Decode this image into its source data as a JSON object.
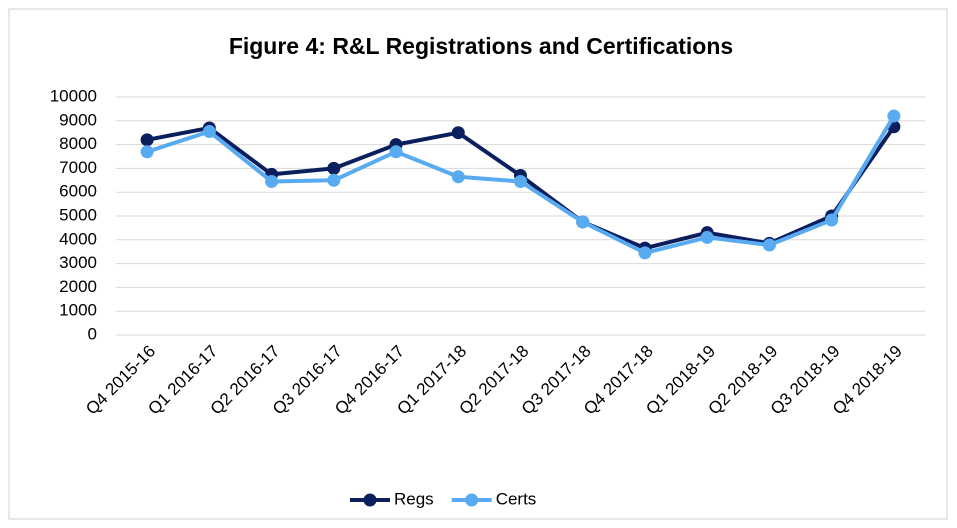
{
  "chart_data": {
    "type": "line",
    "title": "Figure 4: R&L Registrations and Certifications",
    "categories": [
      "Q4 2015-16",
      "Q1 2016-17",
      "Q2 2016-17",
      "Q3 2016-17",
      "Q4 2016-17",
      "Q1 2017-18",
      "Q2 2017-18",
      "Q3 2017-18",
      "Q4 2017-18",
      "Q1 2018-19",
      "Q2 2018-19",
      "Q3 2018-19",
      "Q4 2018-19"
    ],
    "series": [
      {
        "name": "Regs",
        "color": "#0b1f5e",
        "values": [
          8200,
          8700,
          6750,
          7000,
          8000,
          8500,
          6700,
          4750,
          3650,
          4300,
          3850,
          5000,
          8750
        ]
      },
      {
        "name": "Certs",
        "color": "#58abf0",
        "values": [
          7700,
          8550,
          6450,
          6500,
          7700,
          6650,
          6450,
          4750,
          3450,
          4100,
          3780,
          4830,
          9200
        ]
      }
    ],
    "ylim": [
      0,
      10000
    ],
    "yticks": [
      0,
      1000,
      2000,
      3000,
      4000,
      5000,
      6000,
      7000,
      8000,
      9000,
      10000
    ],
    "grid": true,
    "legend": "bottom"
  }
}
